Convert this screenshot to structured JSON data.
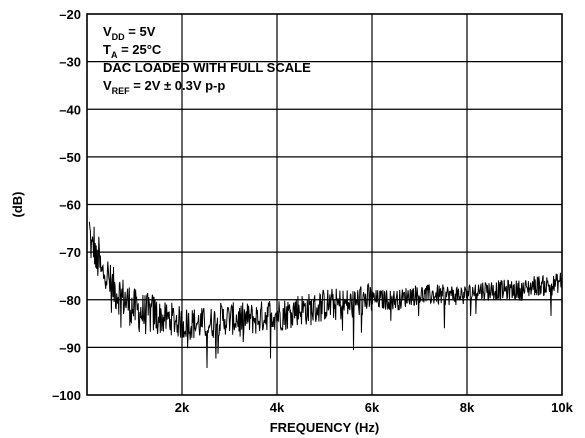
{
  "chart_data": {
    "type": "line",
    "title": "",
    "xlabel": "FREQUENCY (Hz)",
    "ylabel": "(dB)",
    "xlim": [
      0,
      10000
    ],
    "ylim": [
      -100,
      -20
    ],
    "grid": true,
    "x_ticks": [
      2000,
      4000,
      6000,
      8000,
      10000
    ],
    "x_tick_labels": [
      "2k",
      "4k",
      "6k",
      "8k",
      "10k"
    ],
    "y_ticks": [
      -20,
      -30,
      -40,
      -50,
      -60,
      -70,
      -80,
      -90,
      -100
    ],
    "y_tick_labels": [
      "–20",
      "–30",
      "–40",
      "–50",
      "–60",
      "–70",
      "–80",
      "–90",
      "–100"
    ],
    "annotations": [
      {
        "main": "V",
        "sub": "DD",
        "rest": " = 5V"
      },
      {
        "main": "T",
        "sub": "A",
        "rest": " = 25°C"
      },
      {
        "main": "DAC LOADED WITH FULL SCALE",
        "sub": "",
        "rest": ""
      },
      {
        "main": "V",
        "sub": "REF",
        "rest": " = 2V ± 0.3V p-p"
      }
    ],
    "series": [
      {
        "color": "#000000",
        "x": [
          50,
          100,
          150,
          200,
          250,
          300,
          400,
          500,
          600,
          700,
          800,
          900,
          1000,
          1200,
          1400,
          1600,
          1800,
          2000,
          2200,
          2400,
          2600,
          2800,
          3000,
          3200,
          3400,
          3600,
          3800,
          4000,
          4200,
          4400,
          4600,
          4800,
          5000,
          5200,
          5400,
          5600,
          5800,
          6000,
          6200,
          6400,
          6600,
          6800,
          7000,
          7200,
          7400,
          7600,
          7800,
          8000,
          8200,
          8400,
          8600,
          8800,
          9000,
          9200,
          9400,
          9600,
          9800,
          10000
        ],
        "values": [
          -65,
          -70,
          -68,
          -73,
          -71,
          -75,
          -74,
          -77,
          -78,
          -79,
          -80,
          -81,
          -82,
          -83,
          -83,
          -84,
          -84,
          -85,
          -85,
          -85,
          -85,
          -84,
          -84,
          -84,
          -84,
          -84,
          -83,
          -83,
          -83,
          -82,
          -82,
          -82,
          -81,
          -81,
          -81,
          -81,
          -80,
          -80,
          -80,
          -80,
          -80,
          -79,
          -79,
          -79,
          -79,
          -79,
          -79,
          -79,
          -78,
          -78,
          -78,
          -78,
          -78,
          -78,
          -77,
          -77,
          -77,
          -76
        ]
      }
    ]
  }
}
